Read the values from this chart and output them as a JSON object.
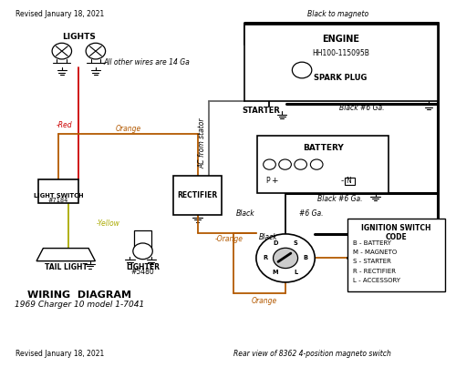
{
  "revised_text": "Revised January 18, 2021",
  "bottom_note": "Rear view of 8362 4-position magneto switch",
  "title": "WIRING  DIAGRAM",
  "subtitle": "1969 Charger 10 model 1-7041",
  "all_other_wires": "All other wires are 14 Ga",
  "black_to_magneto": "Black to magneto",
  "ac_from_stator": "AC from stator",
  "bg_color": "#ffffff",
  "wire_colors": {
    "red": "#cc0000",
    "orange": "#b35900",
    "yellow": "#aaaa00",
    "black": "#000000",
    "gray": "#666666",
    "brown": "#8B4513"
  },
  "ignition_code": [
    "B - BATTERY",
    "M - MAGNETO",
    "S - STARTER",
    "R - RECTIFIER",
    "L - ACCESSORY"
  ],
  "ignition_code_title": [
    "IGNITION SWITCH",
    "CODE"
  ]
}
